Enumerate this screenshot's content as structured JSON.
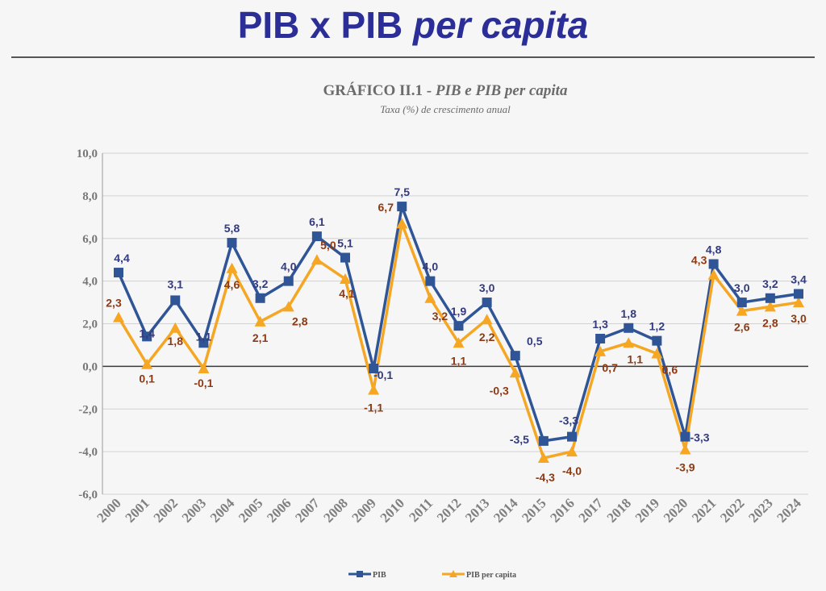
{
  "slide": {
    "title_main": "PIB x PIB ",
    "title_italic": "per capita"
  },
  "chart_data": {
    "type": "line",
    "title_prefix": "GRÁFICO II.1 - ",
    "title_italic": "PIB e PIB per capita",
    "subtitle": "Taxa (%) de crescimento anual",
    "xlabel": "",
    "ylabel": "",
    "ylim": [
      -6,
      10
    ],
    "yticks": [
      "-6,0",
      "-4,0",
      "-2,0",
      "0,0",
      "2,0",
      "4,0",
      "6,0",
      "8,0",
      "10,0"
    ],
    "ytick_values": [
      -6,
      -4,
      -2,
      0,
      2,
      4,
      6,
      8,
      10
    ],
    "grid": true,
    "legend_position": "bottom",
    "categories": [
      "2000",
      "2001",
      "2002",
      "2003",
      "2004",
      "2005",
      "2006",
      "2007",
      "2008",
      "2009",
      "2010",
      "2011",
      "2012",
      "2013",
      "2014",
      "2015",
      "2016",
      "2017",
      "2018",
      "2019",
      "2020",
      "2021",
      "2022",
      "2023",
      "2024"
    ],
    "series": [
      {
        "name": "PIB",
        "color": "#2f5597",
        "marker": "square",
        "values": [
          4.4,
          1.4,
          3.1,
          1.1,
          5.8,
          3.2,
          4.0,
          6.1,
          5.1,
          -0.1,
          7.5,
          4.0,
          1.9,
          3.0,
          0.5,
          -3.5,
          -3.3,
          1.3,
          1.8,
          1.2,
          -3.3,
          4.8,
          3.0,
          3.2,
          3.4
        ],
        "labels": [
          "4,4",
          "1,4",
          "3,1",
          "1,1",
          "5,8",
          "3,2",
          "4,0",
          "6,1",
          "5,1",
          "-0,1",
          "7,5",
          "4,0",
          "1,9",
          "3,0",
          "0,5",
          "-3,5",
          "-3,3",
          "1,3",
          "1,8",
          "1,2",
          "-3,3",
          "4,8",
          "3,0",
          "3,2",
          "3,4"
        ]
      },
      {
        "name": "PIB per capita",
        "color": "#f5a623",
        "marker": "triangle",
        "values": [
          2.3,
          0.1,
          1.8,
          -0.1,
          4.6,
          2.1,
          2.8,
          5.0,
          4.1,
          -1.1,
          6.7,
          3.2,
          1.1,
          2.2,
          -0.3,
          -4.3,
          -4.0,
          0.7,
          1.1,
          0.6,
          -3.9,
          4.3,
          2.6,
          2.8,
          3.0
        ],
        "labels": [
          "2,3",
          "0,1",
          "1,8",
          "-0,1",
          "4,6",
          "2,1",
          "2,8",
          "5,0",
          "4,1",
          "-1,1",
          "6,7",
          "3,2",
          "1,1",
          "2,2",
          "-0,3",
          "-4,3",
          "-4,0",
          "0,7",
          "1,1",
          "0,6",
          "-3,9",
          "4,3",
          "2,6",
          "2,8",
          "3,0"
        ]
      }
    ]
  }
}
